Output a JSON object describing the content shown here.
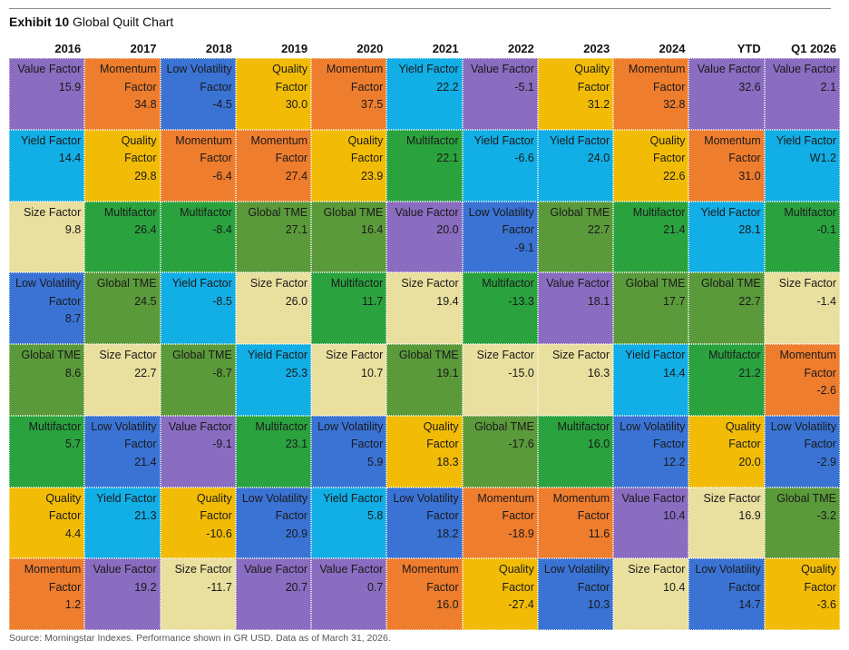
{
  "title": {
    "bold": "Exhibit 10",
    "rest": "Global Quilt Chart"
  },
  "source": "Source: Morningstar Indexes. Performance shown in GR USD. Data as of March 31, 2026.",
  "colors": {
    "Value Factor": "#8a6cc0",
    "Momentum Factor": "#ef7d2e",
    "Low Volatility Factor": "#3a73d4",
    "Quality Factor": "#f2bc06",
    "Yield Factor": "#12aee6",
    "Multifactor": "#2aa33f",
    "Size Factor": "#e9df9e",
    "Global TME": "#5b9a3a"
  },
  "chart_data": {
    "type": "table",
    "title": "Global Quilt Chart",
    "columns": [
      "2016",
      "2017",
      "2018",
      "2019",
      "2020",
      "2021",
      "2022",
      "2023",
      "2024",
      "YTD",
      "Q1 2026"
    ],
    "cells": [
      [
        {
          "name": "Value Factor",
          "value": "15.9"
        },
        {
          "name": "Yield Factor",
          "value": "14.4"
        },
        {
          "name": "Size Factor",
          "value": "9.8"
        },
        {
          "name": "Low Volatility Factor",
          "value": "8.7"
        },
        {
          "name": "Global TME",
          "value": "8.6"
        },
        {
          "name": "Multifactor",
          "value": "5.7"
        },
        {
          "name": "Quality Factor",
          "value": "4.4"
        },
        {
          "name": "Momentum Factor",
          "value": "1.2"
        }
      ],
      [
        {
          "name": "Momentum Factor",
          "value": "34.8"
        },
        {
          "name": "Quality Factor",
          "value": "29.8"
        },
        {
          "name": "Multifactor",
          "value": "26.4"
        },
        {
          "name": "Global TME",
          "value": "24.5"
        },
        {
          "name": "Size Factor",
          "value": "22.7"
        },
        {
          "name": "Low Volatility Factor",
          "value": "21.4"
        },
        {
          "name": "Yield Factor",
          "value": "21.3"
        },
        {
          "name": "Value Factor",
          "value": "19.2"
        }
      ],
      [
        {
          "name": "Low Volatility Factor",
          "value": "-4.5"
        },
        {
          "name": "Momentum Factor",
          "value": "-6.4"
        },
        {
          "name": "Multifactor",
          "value": "-8.4"
        },
        {
          "name": "Yield Factor",
          "value": "-8.5"
        },
        {
          "name": "Global TME",
          "value": "-8.7"
        },
        {
          "name": "Value Factor",
          "value": "-9.1"
        },
        {
          "name": "Quality Factor",
          "value": "-10.6"
        },
        {
          "name": "Size Factor",
          "value": "-11.7"
        }
      ],
      [
        {
          "name": "Quality Factor",
          "value": "30.0"
        },
        {
          "name": "Momentum Factor",
          "value": "27.4"
        },
        {
          "name": "Global TME",
          "value": "27.1"
        },
        {
          "name": "Size Factor",
          "value": "26.0"
        },
        {
          "name": "Yield Factor",
          "value": "25.3"
        },
        {
          "name": "Multifactor",
          "value": "23.1"
        },
        {
          "name": "Low Volatility Factor",
          "value": "20.9"
        },
        {
          "name": "Value Factor",
          "value": "20.7"
        }
      ],
      [
        {
          "name": "Momentum Factor",
          "value": "37.5"
        },
        {
          "name": "Quality Factor",
          "value": "23.9"
        },
        {
          "name": "Global TME",
          "value": "16.4"
        },
        {
          "name": "Multifactor",
          "value": "11.7"
        },
        {
          "name": "Size Factor",
          "value": "10.7"
        },
        {
          "name": "Low Volatility Factor",
          "value": "5.9"
        },
        {
          "name": "Yield Factor",
          "value": "5.8"
        },
        {
          "name": "Value Factor",
          "value": "0.7"
        }
      ],
      [
        {
          "name": "Yield Factor",
          "value": "22.2"
        },
        {
          "name": "Multifactor",
          "value": "22.1"
        },
        {
          "name": "Value Factor",
          "value": "20.0"
        },
        {
          "name": "Size Factor",
          "value": "19.4"
        },
        {
          "name": "Global TME",
          "value": "19.1"
        },
        {
          "name": "Quality Factor",
          "value": "18.3"
        },
        {
          "name": "Low Volatility Factor",
          "value": "18.2"
        },
        {
          "name": "Momentum Factor",
          "value": "16.0"
        }
      ],
      [
        {
          "name": "Value Factor",
          "value": "-5.1"
        },
        {
          "name": "Yield Factor",
          "value": "-6.6"
        },
        {
          "name": "Low Volatility Factor",
          "value": "-9.1"
        },
        {
          "name": "Multifactor",
          "value": "-13.3"
        },
        {
          "name": "Size Factor",
          "value": "-15.0"
        },
        {
          "name": "Global TME",
          "value": "-17.6"
        },
        {
          "name": "Momentum Factor",
          "value": "-18.9"
        },
        {
          "name": "Quality Factor",
          "value": "-27.4"
        }
      ],
      [
        {
          "name": "Quality Factor",
          "value": "31.2"
        },
        {
          "name": "Yield Factor",
          "value": "24.0"
        },
        {
          "name": "Global TME",
          "value": "22.7"
        },
        {
          "name": "Value Factor",
          "value": "18.1"
        },
        {
          "name": "Size Factor",
          "value": "16.3"
        },
        {
          "name": "Multifactor",
          "value": "16.0"
        },
        {
          "name": "Momentum Factor",
          "value": "11.6"
        },
        {
          "name": "Low Volatility Factor",
          "value": "10.3"
        }
      ],
      [
        {
          "name": "Momentum Factor",
          "value": "32.8"
        },
        {
          "name": "Quality Factor",
          "value": "22.6"
        },
        {
          "name": "Multifactor",
          "value": "21.4"
        },
        {
          "name": "Global TME",
          "value": "17.7"
        },
        {
          "name": "Yield Factor",
          "value": "14.4"
        },
        {
          "name": "Low Volatility Factor",
          "value": "12.2"
        },
        {
          "name": "Value Factor",
          "value": "10.4"
        },
        {
          "name": "Size Factor",
          "value": "10.4"
        }
      ],
      [
        {
          "name": "Value Factor",
          "value": "32.6"
        },
        {
          "name": "Momentum Factor",
          "value": "31.0"
        },
        {
          "name": "Yield Factor",
          "value": "28.1"
        },
        {
          "name": "Global TME",
          "value": "22.7"
        },
        {
          "name": "Multifactor",
          "value": "21.2"
        },
        {
          "name": "Quality Factor",
          "value": "20.0"
        },
        {
          "name": "Size Factor",
          "value": "16.9"
        },
        {
          "name": "Low Volatility Factor",
          "value": "14.7"
        }
      ],
      [
        {
          "name": "Value Factor",
          "value": "2.1"
        },
        {
          "name": "Yield Factor",
          "value": "W1.2"
        },
        {
          "name": "Multifactor",
          "value": "-0.1"
        },
        {
          "name": "Size Factor",
          "value": "-1.4"
        },
        {
          "name": "Momentum Factor",
          "value": "-2.6"
        },
        {
          "name": "Low Volatility Factor",
          "value": "-2.9"
        },
        {
          "name": "Global TME",
          "value": "-3.2"
        },
        {
          "name": "Quality Factor",
          "value": "-3.6"
        }
      ]
    ]
  }
}
